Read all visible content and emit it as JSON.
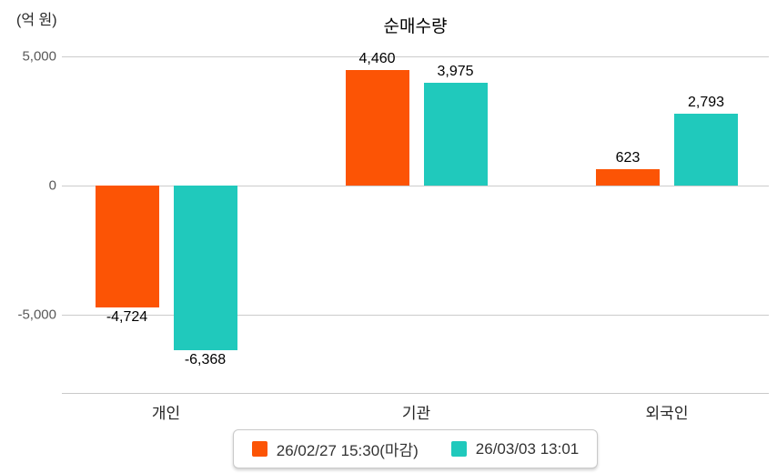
{
  "chart_title": "순매수량",
  "unit_label": "(억 원)",
  "chart_data": {
    "type": "bar",
    "title": "순매수량",
    "ylabel": "(억 원)",
    "categories": [
      "개인",
      "기관",
      "외국인"
    ],
    "series": [
      {
        "name": "26/02/27 15:30(마감)",
        "color": "#fc5405",
        "values": [
          -4724,
          4460,
          623
        ],
        "value_labels": [
          "-4,724",
          "4,460",
          "623"
        ]
      },
      {
        "name": "26/03/03 13:01",
        "color": "#20c9bc",
        "values": [
          -6368,
          3975,
          2793
        ],
        "value_labels": [
          "-6,368",
          "3,975",
          "2,793"
        ]
      }
    ],
    "yticks": [
      {
        "value": 5000,
        "label": "5,000"
      },
      {
        "value": 0,
        "label": "0"
      },
      {
        "value": -5000,
        "label": "-5,000"
      }
    ],
    "ylim": [
      -8000,
      5000
    ],
    "grid": true,
    "legend_position": "bottom"
  },
  "colors": {
    "series1": "#fc5405",
    "series2": "#20c9bc",
    "gridline": "#cccccc",
    "axis_line": "#c9c9c9",
    "tick_label": "#595959",
    "category_label": "#262626",
    "value_label": "#000000",
    "legend_border": "#c9c9c9"
  }
}
